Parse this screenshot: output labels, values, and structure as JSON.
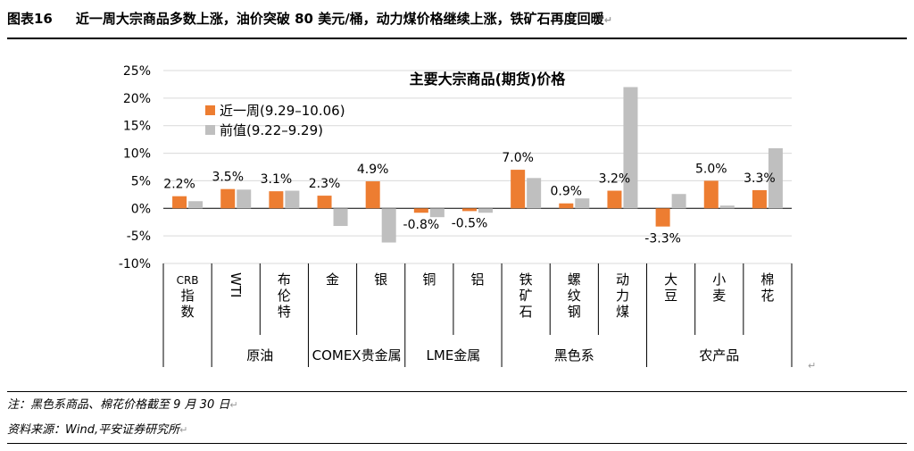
{
  "header": {
    "figure_no": "图表16",
    "title": "近一周大宗商品多数上涨，油价突破 80 美元/桶，动力煤价格继续上涨，铁矿石再度回暖"
  },
  "colors": {
    "recent": "#ED7D31",
    "previous": "#BFBFBF",
    "grid": "#D9D9D9"
  },
  "chart_data": {
    "type": "bar",
    "title": "主要大宗商品(期货)价格",
    "categories": [
      "CRB指数",
      "WTI",
      "布伦特",
      "金",
      "银",
      "铜",
      "铝",
      "铁矿石",
      "螺纹钢",
      "动力煤",
      "大豆",
      "小麦",
      "棉花"
    ],
    "groups": [
      {
        "label": "原油",
        "categories": [
          "WTI",
          "布伦特"
        ]
      },
      {
        "label": "COMEX贵金属",
        "categories": [
          "金",
          "银"
        ]
      },
      {
        "label": "LME金属",
        "categories": [
          "铜",
          "铝"
        ]
      },
      {
        "label": "黑色系",
        "categories": [
          "铁矿石",
          "螺纹钢",
          "动力煤"
        ]
      },
      {
        "label": "农产品",
        "categories": [
          "大豆",
          "小麦",
          "棉花"
        ]
      }
    ],
    "series": [
      {
        "name": "近一周(9.29–10.06)",
        "values": [
          2.2,
          3.5,
          3.1,
          2.3,
          4.9,
          -0.8,
          -0.5,
          7.0,
          0.9,
          3.2,
          -3.3,
          5.0,
          3.3
        ]
      },
      {
        "name": "前值(9.22–9.29)",
        "values": [
          1.3,
          3.4,
          3.2,
          -3.2,
          -6.2,
          -1.6,
          -0.8,
          5.5,
          1.8,
          22.0,
          2.6,
          0.5,
          10.9
        ]
      }
    ],
    "data_labels": [
      "2.2%",
      "3.5%",
      "3.1%",
      "2.3%",
      "4.9%",
      "-0.8%",
      "-0.5%",
      "7.0%",
      "0.9%",
      "3.2%",
      "-3.3%",
      "5.0%",
      "3.3%"
    ],
    "yticks": [
      "25%",
      "20%",
      "15%",
      "10%",
      "5%",
      "0%",
      "-5%",
      "-10%"
    ],
    "ylim": [
      -10,
      25
    ],
    "grid": true,
    "legend_position": "top-left"
  },
  "footnotes": {
    "note": "注：黑色系商品、棉花价格截至 9 月 30 日",
    "source": "资料来源：Wind,平安证券研究所"
  }
}
